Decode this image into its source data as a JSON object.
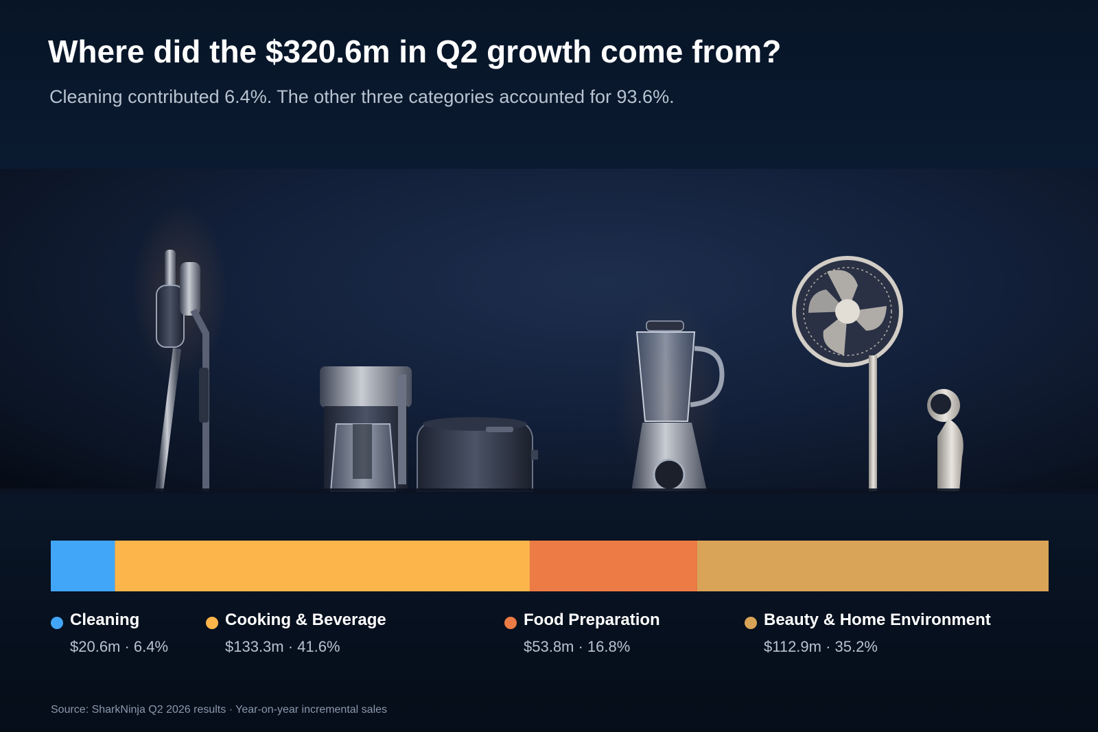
{
  "header": {
    "title": "Where did the $320.6m in Q2 growth come from?",
    "subtitle": "Cleaning contributed 6.4%. The other three categories accounted for 93.6%."
  },
  "chart_data": {
    "type": "bar",
    "orientation": "horizontal-stacked-100",
    "title": "Where did the $320.6m in Q2 growth come from?",
    "total": 320.6,
    "categories": [
      "Cleaning",
      "Cooking & Beverage",
      "Food Preparation",
      "Beauty & Home Environment"
    ],
    "values": [
      20.6,
      133.3,
      53.8,
      112.9
    ],
    "percent": [
      6.4,
      41.6,
      16.8,
      35.2
    ],
    "colors": [
      "#42a6f8",
      "#fbb54b",
      "#ec7b45",
      "#d9a457"
    ],
    "legend": "below",
    "labels": [
      "$20.6m · 6.4%",
      "$133.3m · 41.6%",
      "$53.8m · 16.8%",
      "$112.9m · 35.2%"
    ]
  },
  "footer": {
    "source": "Source: SharkNinja Q2 2026 results · Year-on-year incremental sales"
  },
  "image": {
    "icons": [
      "stick-vacuum-icon",
      "coffee-maker-icon",
      "rice-cooker-icon",
      "blender-icon",
      "fan-icon",
      "hair-dryer-icon"
    ]
  }
}
